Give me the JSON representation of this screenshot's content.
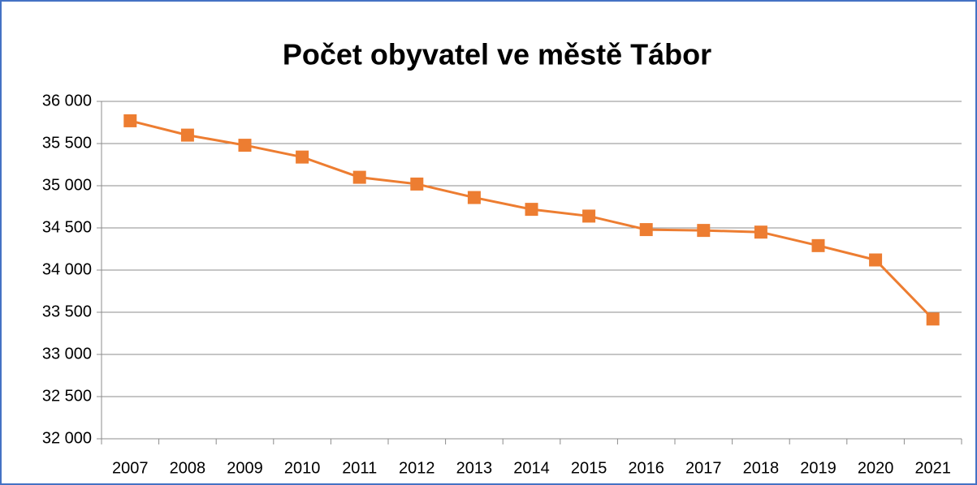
{
  "chart_data": {
    "type": "line",
    "title": "Počet obyvatel ve městě Tábor",
    "categories": [
      "2007",
      "2008",
      "2009",
      "2010",
      "2011",
      "2012",
      "2013",
      "2014",
      "2015",
      "2016",
      "2017",
      "2018",
      "2019",
      "2020",
      "2021"
    ],
    "series": [
      {
        "name": "Počet obyvatel",
        "color": "#ed7d31",
        "values": [
          35770,
          35600,
          35480,
          35340,
          35100,
          35020,
          34860,
          34720,
          34640,
          34480,
          34470,
          34450,
          34290,
          34120,
          33420
        ]
      }
    ],
    "ylim": [
      32000,
      36000
    ],
    "yticks": [
      {
        "value": 32000,
        "label": "32 000"
      },
      {
        "value": 32500,
        "label": "32 500"
      },
      {
        "value": 33000,
        "label": "33 000"
      },
      {
        "value": 33500,
        "label": "33 500"
      },
      {
        "value": 34000,
        "label": "34 000"
      },
      {
        "value": 34500,
        "label": "34 500"
      },
      {
        "value": 35000,
        "label": "35 000"
      },
      {
        "value": 35500,
        "label": "35 500"
      },
      {
        "value": 36000,
        "label": "36 000"
      }
    ],
    "grid": true
  }
}
